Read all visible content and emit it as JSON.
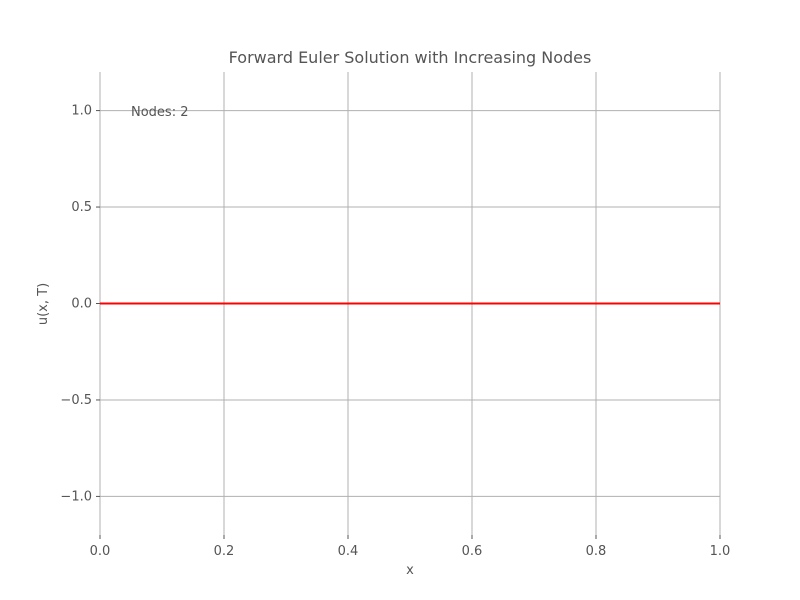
{
  "chart_data": {
    "type": "line",
    "title": "Forward Euler Solution with Increasing Nodes",
    "xlabel": "x",
    "ylabel": "u(x, T)",
    "xlim": [
      0.0,
      1.0
    ],
    "ylim": [
      -1.2,
      1.2
    ],
    "x_ticks": [
      0.0,
      0.2,
      0.4,
      0.6,
      0.8,
      1.0
    ],
    "x_tick_labels": [
      "0.0",
      "0.2",
      "0.4",
      "0.6",
      "0.8",
      "1.0"
    ],
    "y_ticks": [
      -1.0,
      -0.5,
      0.0,
      0.5,
      1.0
    ],
    "y_tick_labels": [
      "−1.0",
      "−0.5",
      "0.0",
      "0.5",
      "1.0"
    ],
    "grid": true,
    "annotation": {
      "text": "Nodes: 2",
      "x": 0.05,
      "y": 1.0
    },
    "series": [
      {
        "color": "#ff0000",
        "x": [
          0.0,
          1.0
        ],
        "y": [
          0.0,
          0.0
        ]
      }
    ]
  }
}
